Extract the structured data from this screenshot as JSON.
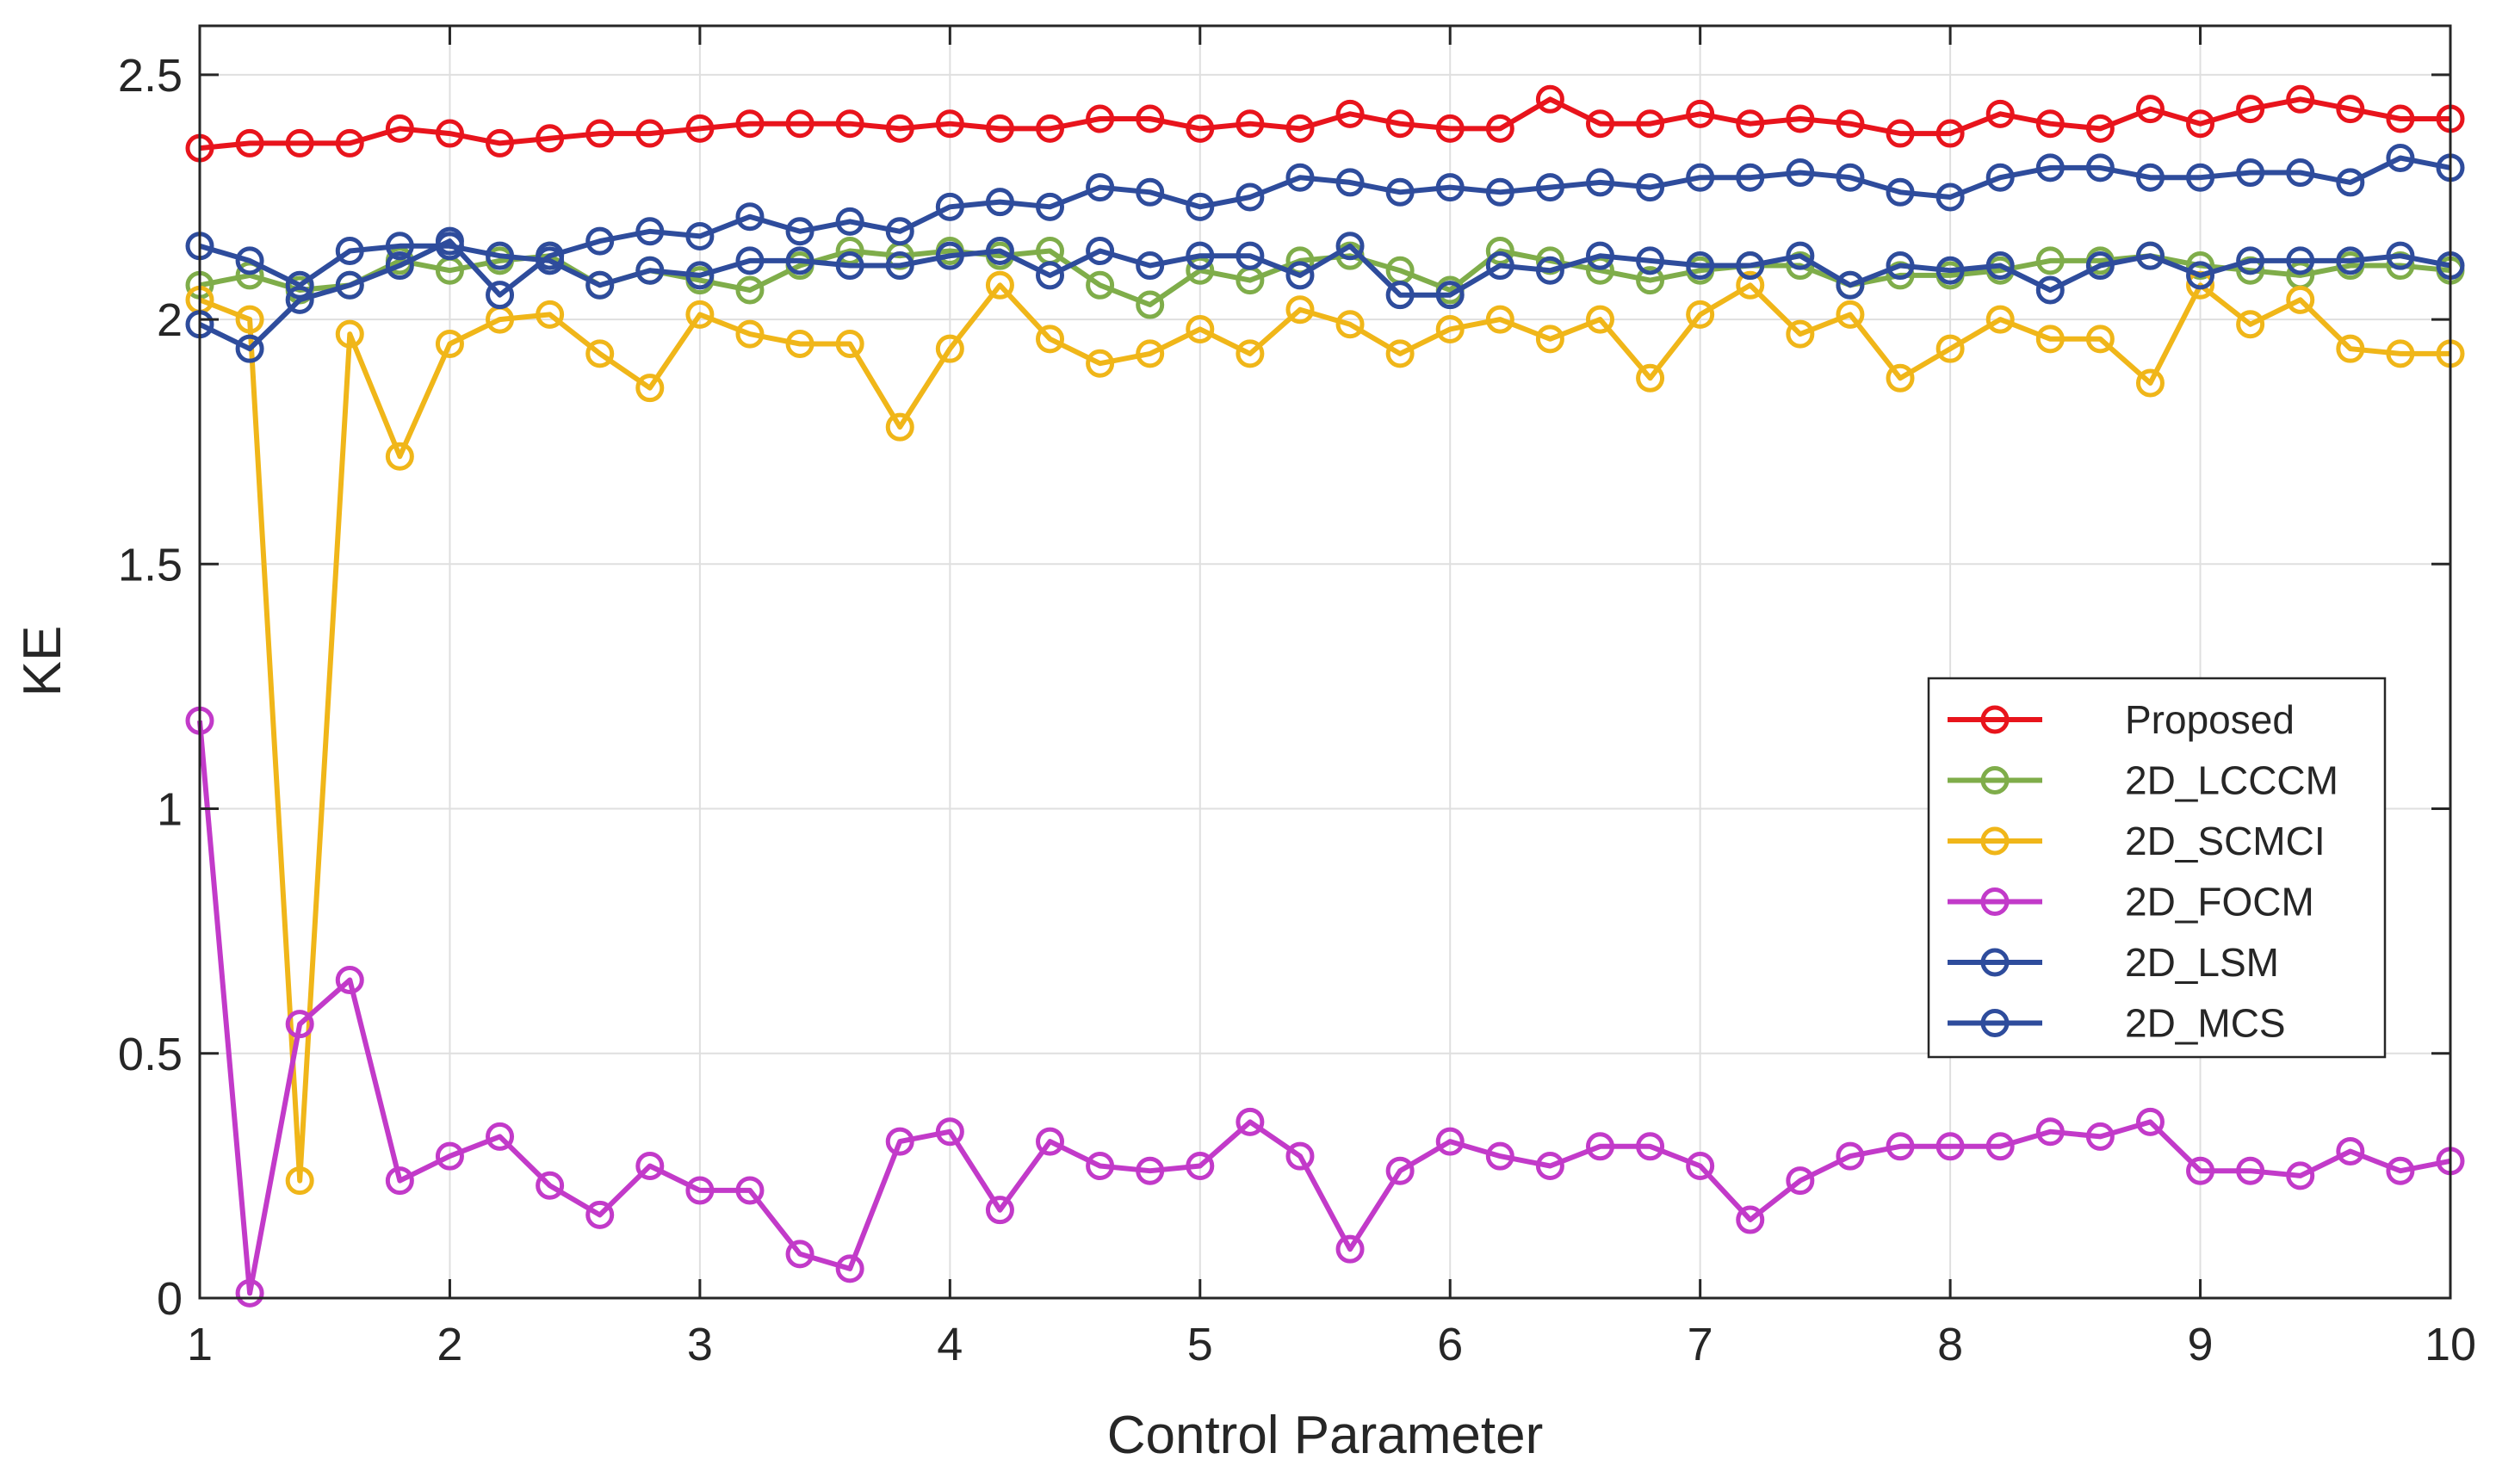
{
  "chart_data": {
    "type": "line",
    "title": "",
    "xlabel": "Control Parameter",
    "ylabel": "KE",
    "xlim": [
      1,
      10
    ],
    "ylim": [
      0,
      2.6
    ],
    "xticks": [
      "1",
      "2",
      "3",
      "4",
      "5",
      "6",
      "7",
      "8",
      "9",
      "10"
    ],
    "yticks": [
      "0",
      "0.5",
      "1",
      "1.5",
      "2",
      "2.5"
    ],
    "grid": true,
    "legend": "center-right",
    "x": [
      1.0,
      1.2,
      1.4,
      1.6,
      1.8,
      2.0,
      2.2,
      2.4,
      2.6,
      2.8,
      3.0,
      3.2,
      3.4,
      3.6,
      3.8,
      4.0,
      4.2,
      4.4,
      4.6,
      4.8,
      5.0,
      5.2,
      5.4,
      5.6,
      5.8,
      6.0,
      6.2,
      6.4,
      6.6,
      6.8,
      7.0,
      7.2,
      7.4,
      7.6,
      7.8,
      8.0,
      8.2,
      8.4,
      8.6,
      8.8,
      9.0,
      9.2,
      9.4,
      9.6,
      9.8,
      10.0
    ],
    "series": [
      {
        "name": "Proposed",
        "color": "#e8141c",
        "values": [
          2.35,
          2.36,
          2.36,
          2.36,
          2.39,
          2.38,
          2.36,
          2.37,
          2.38,
          2.38,
          2.39,
          2.4,
          2.4,
          2.4,
          2.39,
          2.4,
          2.39,
          2.39,
          2.41,
          2.41,
          2.39,
          2.4,
          2.39,
          2.42,
          2.4,
          2.39,
          2.39,
          2.45,
          2.4,
          2.4,
          2.42,
          2.4,
          2.41,
          2.4,
          2.38,
          2.38,
          2.42,
          2.4,
          2.39,
          2.43,
          2.4,
          2.43,
          2.45,
          2.43,
          2.41,
          2.41
        ]
      },
      {
        "name": "2D_LCCCM",
        "color": "#7fad4a",
        "values": [
          2.07,
          2.09,
          2.06,
          2.07,
          2.12,
          2.1,
          2.12,
          2.13,
          2.07,
          2.1,
          2.08,
          2.06,
          2.11,
          2.14,
          2.13,
          2.14,
          2.13,
          2.14,
          2.07,
          2.03,
          2.1,
          2.08,
          2.12,
          2.13,
          2.1,
          2.06,
          2.14,
          2.12,
          2.1,
          2.08,
          2.1,
          2.11,
          2.11,
          2.07,
          2.09,
          2.09,
          2.1,
          2.12,
          2.12,
          2.13,
          2.11,
          2.1,
          2.09,
          2.11,
          2.11,
          2.1
        ]
      },
      {
        "name": "2D_SCMCI",
        "color": "#f0b619",
        "values": [
          2.04,
          2.0,
          0.24,
          1.97,
          1.72,
          1.95,
          2.0,
          2.01,
          1.93,
          1.86,
          2.01,
          1.97,
          1.95,
          1.95,
          1.78,
          1.94,
          2.07,
          1.96,
          1.91,
          1.93,
          1.98,
          1.93,
          2.02,
          1.99,
          1.93,
          1.98,
          2.0,
          1.96,
          2.0,
          1.88,
          2.01,
          2.07,
          1.97,
          2.01,
          1.88,
          1.94,
          2.0,
          1.96,
          1.96,
          1.87,
          2.07,
          1.99,
          2.04,
          1.94,
          1.93,
          1.93
        ]
      },
      {
        "name": "2D_FOCM",
        "color": "#c23ac9",
        "values": [
          1.18,
          0.01,
          0.56,
          0.65,
          0.24,
          0.29,
          0.33,
          0.23,
          0.17,
          0.27,
          0.22,
          0.22,
          0.09,
          0.06,
          0.32,
          0.34,
          0.18,
          0.32,
          0.27,
          0.26,
          0.27,
          0.36,
          0.29,
          0.1,
          0.26,
          0.32,
          0.29,
          0.27,
          0.31,
          0.31,
          0.27,
          0.16,
          0.24,
          0.29,
          0.31,
          0.31,
          0.31,
          0.34,
          0.33,
          0.36,
          0.26,
          0.26,
          0.25,
          0.3,
          0.26,
          0.28
        ]
      },
      {
        "name": "2D_LSM",
        "color": "#2e4c9c",
        "values": [
          2.15,
          2.12,
          2.07,
          2.14,
          2.15,
          2.15,
          2.13,
          2.12,
          2.07,
          2.1,
          2.09,
          2.12,
          2.12,
          2.11,
          2.11,
          2.13,
          2.14,
          2.09,
          2.14,
          2.11,
          2.13,
          2.13,
          2.09,
          2.15,
          2.05,
          2.05,
          2.11,
          2.1,
          2.13,
          2.12,
          2.11,
          2.11,
          2.13,
          2.07,
          2.11,
          2.1,
          2.11,
          2.06,
          2.11,
          2.13,
          2.09,
          2.12,
          2.12,
          2.12,
          2.13,
          2.11
        ]
      },
      {
        "name": "2D_MCS",
        "color": "#2e4c9c",
        "values": [
          1.99,
          1.94,
          2.04,
          2.07,
          2.11,
          2.16,
          2.05,
          2.13,
          2.16,
          2.18,
          2.17,
          2.21,
          2.18,
          2.2,
          2.18,
          2.23,
          2.24,
          2.23,
          2.27,
          2.26,
          2.23,
          2.25,
          2.29,
          2.28,
          2.26,
          2.27,
          2.26,
          2.27,
          2.28,
          2.27,
          2.29,
          2.29,
          2.3,
          2.29,
          2.26,
          2.25,
          2.29,
          2.31,
          2.31,
          2.29,
          2.29,
          2.3,
          2.3,
          2.28,
          2.33,
          2.31
        ]
      }
    ]
  }
}
